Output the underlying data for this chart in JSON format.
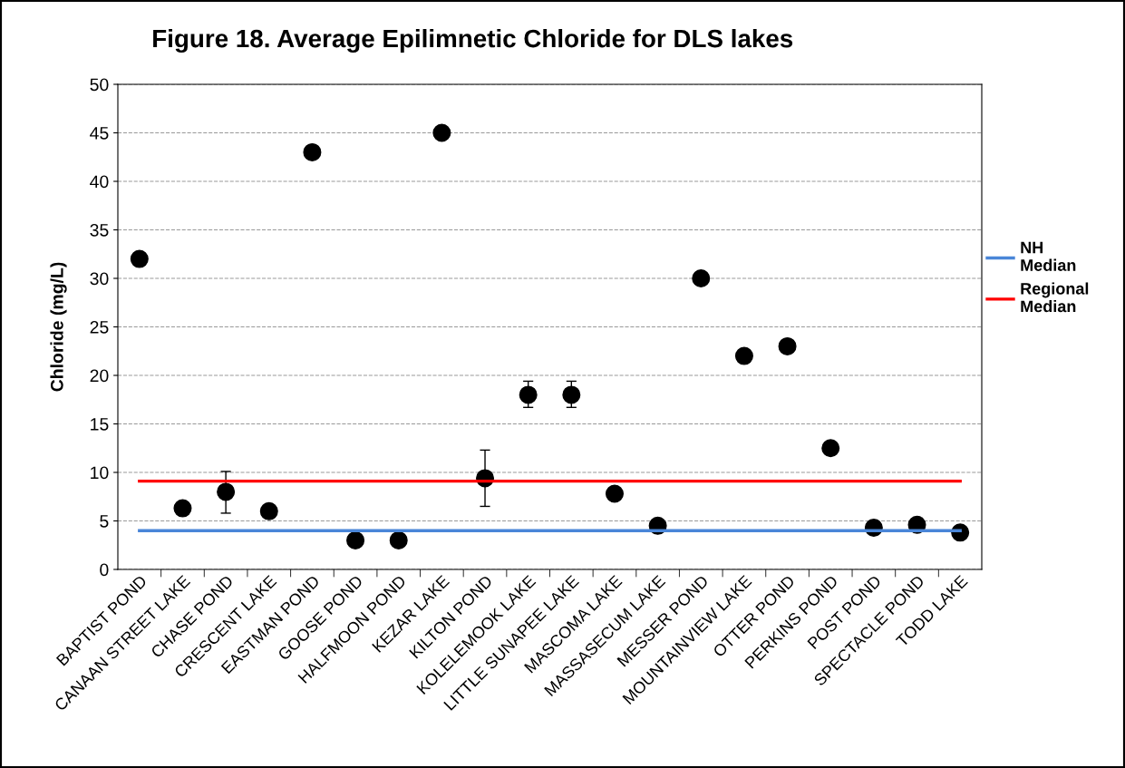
{
  "chart_data": {
    "type": "scatter",
    "title": "Figure 18. Average Epilimnetic Chloride for DLS lakes",
    "ylabel": "Chloride (mg/L)",
    "categories": [
      "BAPTIST POND",
      "CANAAN STREET LAKE",
      "CHASE POND",
      "CRESCENT LAKE",
      "EASTMAN POND",
      "GOOSE POND",
      "HALFMOON POND",
      "KEZAR LAKE",
      "KILTON POND",
      "KOLELEMOOK LAKE",
      "LITTLE SUNAPEE LAKE",
      "MASCOMA LAKE",
      "MASSASECUM LAKE",
      "MESSER POND",
      "MOUNTAINVIEW LAKE",
      "OTTER POND",
      "PERKINS POND",
      "POST POND",
      "SPECTACLE POND",
      "TODD LAKE"
    ],
    "series": [
      {
        "color": "#000000",
        "marker": "circle",
        "values": [
          32,
          6.3,
          8,
          6,
          43,
          3,
          3,
          45,
          9.4,
          18,
          18,
          7.8,
          4.5,
          30,
          22,
          23,
          12.5,
          4.3,
          4.6,
          3.8
        ],
        "errors": [
          null,
          null,
          [
            5.8,
            10.1
          ],
          null,
          null,
          null,
          null,
          null,
          [
            6.5,
            12.3
          ],
          [
            16.7,
            19.4
          ],
          [
            16.7,
            19.4
          ],
          null,
          null,
          null,
          null,
          null,
          null,
          [
            3.6,
            5.0
          ],
          null,
          null
        ]
      },
      {
        "type": "line",
        "marker": "none",
        "name": "NH Median",
        "color": "#4a86d8",
        "values": [
          4,
          4,
          4,
          4,
          4,
          4,
          4,
          4,
          4,
          4,
          4,
          4,
          4,
          4,
          4,
          4,
          4,
          4,
          4,
          4
        ]
      },
      {
        "type": "line",
        "marker": "none",
        "name": "Regional Median",
        "color": "#ff0000",
        "values": [
          9.1,
          9.1,
          9.1,
          9.1,
          9.1,
          9.1,
          9.1,
          9.1,
          9.1,
          9.1,
          9.1,
          9.1,
          9.1,
          9.1,
          9.1,
          9.1,
          9.1,
          9.1,
          9.1,
          9.1
        ]
      }
    ],
    "ylim": [
      0,
      50
    ],
    "yticks": [
      0,
      5,
      10,
      15,
      20,
      25,
      30,
      35,
      40,
      45,
      50
    ],
    "grid": "y",
    "legend": "right"
  }
}
